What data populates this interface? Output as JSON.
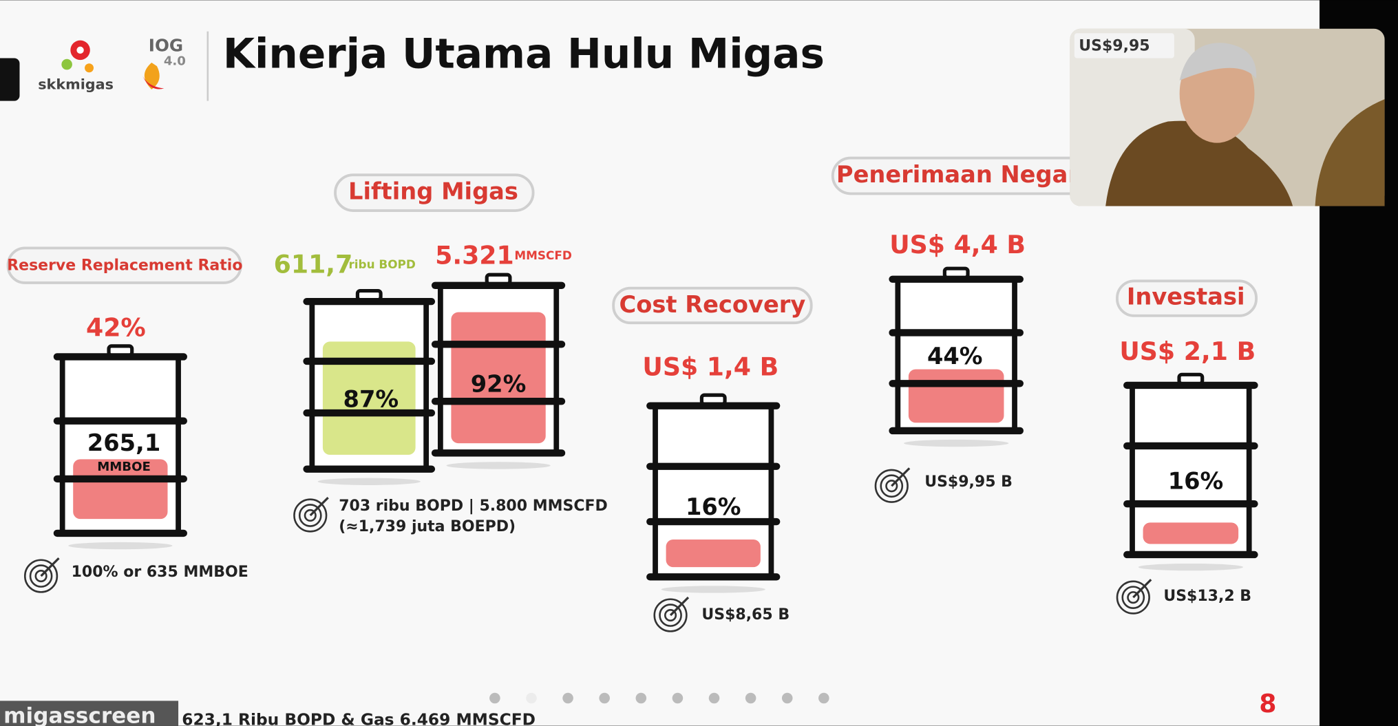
{
  "header": {
    "logo_text": "skkmigas",
    "logo2_text": "IOG",
    "logo2_version": "4.0",
    "title": "Kinerja Utama Hulu Migas"
  },
  "video": {
    "overlay_text": "US$9,95"
  },
  "reserve": {
    "label": "Reserve Replacement Ratio",
    "headline": "42%",
    "barrel_value": "265,1",
    "barrel_unit": "MMBOE",
    "target": "100%  or 635 MMBOE"
  },
  "lifting": {
    "label": "Lifting Migas",
    "oil_value": "611,7",
    "oil_unit": "ribu BOPD",
    "gas_value": "5.321",
    "gas_unit": "MMSCFD",
    "oil_percent": "87%",
    "gas_percent": "92%",
    "target": "703 ribu BOPD | 5.800 MMSCFD",
    "target_note": "(≈1,739 juta BOEPD)"
  },
  "cost_recovery": {
    "label": "Cost Recovery",
    "headline": "US$ 1,4 B",
    "percent": "16%",
    "target": "US$8,65 B"
  },
  "penerimaan": {
    "label": "Penerimaan Negara",
    "headline": "US$ 4,4 B",
    "percent": "44%",
    "target": "US$9,95 B"
  },
  "investasi": {
    "label": "Investasi",
    "headline": "US$ 2,1 B",
    "percent": "16%",
    "target": "US$13,2 B"
  },
  "footer": {
    "page_number": "8",
    "note": "623,1 Ribu BOPD & Gas 6.469 MMSCFD",
    "screen_label": "migasscreen"
  }
}
